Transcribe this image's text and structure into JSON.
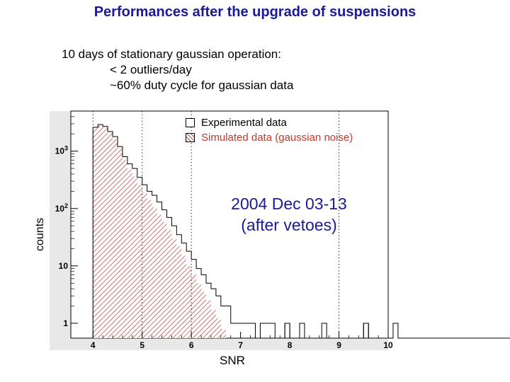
{
  "header": {
    "title": "Performances after the upgrade of suspensions",
    "line1": "10 days of stationary gaussian operation:",
    "line2": "< 2 outliers/day",
    "line3": "~60% duty cycle for gaussian data"
  },
  "annotation": {
    "line1": "2004 Dec 03-13",
    "line2": "(after vetoes)"
  },
  "colors": {
    "title": "#1a1a99",
    "simulated": "#c0504d",
    "experimental": "#000000",
    "annotation": "#1a1a99"
  },
  "chart_data": {
    "type": "histogram",
    "xlabel": "SNR",
    "ylabel": "counts",
    "xlim": [
      3.55,
      10
    ],
    "ylim": [
      0.55,
      5000
    ],
    "log_y": true,
    "x_ticks": [
      4,
      5,
      6,
      7,
      8,
      9,
      10
    ],
    "x_tick_labels": [
      "4",
      "5",
      "6",
      "7",
      "8",
      "9",
      "10"
    ],
    "y_ticks": [
      1,
      10,
      100,
      1000
    ],
    "y_tick_labels": [
      "1",
      "10",
      "10^2",
      "10^3"
    ],
    "vertical_dashed_lines": [
      4,
      5,
      6,
      9
    ],
    "bin_width": 0.1,
    "bin_start": 4.0,
    "series": [
      {
        "name": "Experimental data",
        "values": [
          2600,
          2900,
          2700,
          2200,
          1800,
          1200,
          800,
          600,
          500,
          350,
          260,
          200,
          170,
          130,
          95,
          70,
          50,
          35,
          25,
          18,
          13,
          9,
          7,
          5,
          4,
          3,
          2,
          2,
          1,
          1,
          1,
          1,
          1,
          0,
          1,
          1,
          1,
          0,
          0,
          1,
          0,
          0,
          0,
          0,
          0,
          0,
          0,
          0,
          0,
          0,
          0,
          0,
          0,
          0,
          0,
          1,
          0,
          0,
          0,
          0,
          0,
          1,
          0,
          0,
          0,
          0,
          0,
          0,
          0,
          0,
          0,
          0,
          0,
          0,
          0,
          0,
          0,
          0,
          0,
          0,
          0,
          0,
          0,
          0,
          0,
          0,
          0,
          0,
          0,
          0,
          0,
          0,
          0,
          0,
          0,
          0,
          0,
          1,
          0,
          0,
          0,
          0,
          0,
          0,
          0,
          0,
          0,
          0,
          0,
          0,
          0,
          0,
          0,
          0,
          0,
          0,
          0,
          0,
          0,
          0,
          0,
          0,
          0,
          0,
          0,
          0
        ]
      },
      {
        "name": "Simulated data (gaussian noise)",
        "values": [
          2500,
          2800,
          2600,
          2100,
          1600,
          1100,
          700,
          480,
          360,
          260,
          190,
          140,
          105,
          78,
          58,
          42,
          30,
          22,
          15,
          10,
          7,
          5,
          3.5,
          2.5,
          1.7,
          1.2,
          0.8
        ]
      }
    ],
    "experimental_extra_bins": [
      {
        "x": 7.95,
        "value": 1
      },
      {
        "x": 8.25,
        "value": 1
      },
      {
        "x": 8.7,
        "value": 1
      },
      {
        "x": 9.55,
        "value": 1
      }
    ],
    "legend_position": "top-right"
  }
}
